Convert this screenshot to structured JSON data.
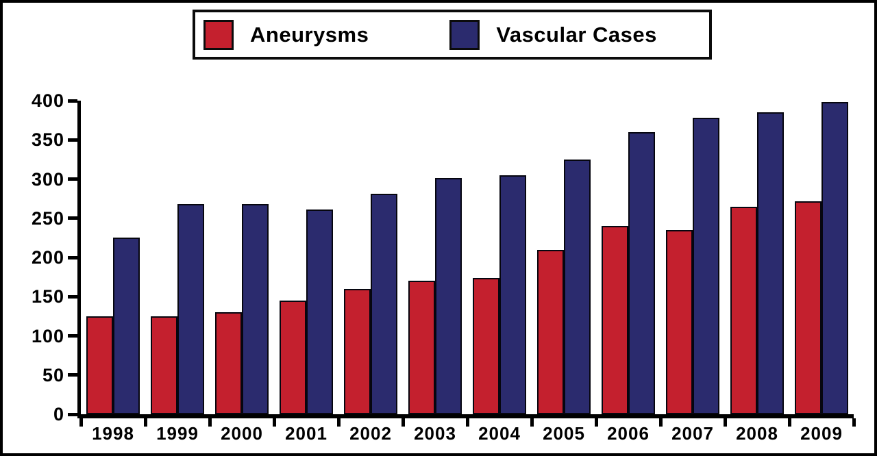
{
  "chart_data": {
    "type": "bar",
    "title": "",
    "xlabel": "",
    "ylabel": "",
    "categories": [
      "1998",
      "1999",
      "2000",
      "2001",
      "2002",
      "2003",
      "2004",
      "2005",
      "2006",
      "2007",
      "2008",
      "2009"
    ],
    "series": [
      {
        "name": "Aneurysms",
        "color": "#c4202e",
        "values": [
          125,
          125,
          130,
          145,
          160,
          170,
          174,
          210,
          240,
          235,
          265,
          272
        ]
      },
      {
        "name": "Vascular Cases",
        "color": "#2b2b6e",
        "values": [
          225,
          268,
          268,
          261,
          281,
          301,
          305,
          325,
          360,
          378,
          385,
          398
        ]
      }
    ],
    "ylim": [
      0,
      400
    ],
    "yticks": [
      0,
      50,
      100,
      150,
      200,
      250,
      300,
      350,
      400
    ],
    "grid": false,
    "legend_position": "top-center",
    "axis_color": "#000000",
    "bar_outline_color": "#000000",
    "background": "#ffffff"
  }
}
